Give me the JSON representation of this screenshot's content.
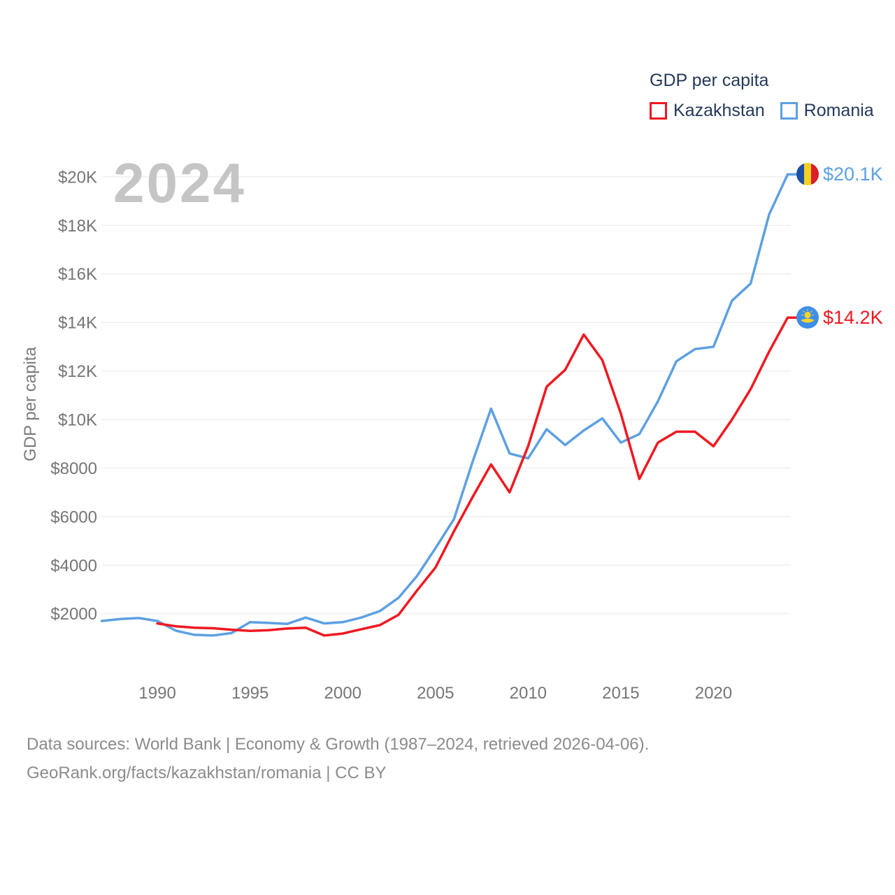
{
  "watermark": "2024",
  "legend": {
    "title": "GDP per capita",
    "items": [
      {
        "label": "Kazakhstan",
        "color": "#f01820"
      },
      {
        "label": "Romania",
        "color": "#5da0e2"
      }
    ]
  },
  "chart_data": {
    "type": "line",
    "title": "GDP per capita",
    "ylabel": "GDP per capita",
    "x_range": [
      1987,
      2024
    ],
    "ylim": [
      0,
      21000
    ],
    "grid": true,
    "legend_position": "top-right",
    "x_ticks": [
      1990,
      1995,
      2000,
      2005,
      2010,
      2015,
      2020
    ],
    "y_ticks": [
      {
        "value": 2000,
        "label": "$2000"
      },
      {
        "value": 4000,
        "label": "$4000"
      },
      {
        "value": 6000,
        "label": "$6000"
      },
      {
        "value": 8000,
        "label": "$8000"
      },
      {
        "value": 10000,
        "label": "$10K"
      },
      {
        "value": 12000,
        "label": "$12K"
      },
      {
        "value": 14000,
        "label": "$14K"
      },
      {
        "value": 16000,
        "label": "$16K"
      },
      {
        "value": 18000,
        "label": "$18K"
      },
      {
        "value": 20000,
        "label": "$20K"
      }
    ],
    "series": [
      {
        "name": "Kazakhstan",
        "flag": "kazakhstan",
        "color": "#f01820",
        "start_year": 1990,
        "end_label": "$14.2K",
        "values": [
          1600,
          1480,
          1420,
          1400,
          1340,
          1290,
          1320,
          1390,
          1420,
          1100,
          1180,
          1360,
          1530,
          1950,
          2950,
          3900,
          5400,
          6800,
          8150,
          7000,
          8900,
          11350,
          12050,
          13500,
          12450,
          10250,
          7550,
          9050,
          9500,
          9500,
          8900,
          10000,
          11250,
          12800,
          14200
        ]
      },
      {
        "name": "Romania",
        "flag": "romania",
        "color": "#5da0e2",
        "start_year": 1987,
        "end_label": "$20.1K",
        "values": [
          1700,
          1780,
          1820,
          1700,
          1300,
          1130,
          1100,
          1200,
          1650,
          1620,
          1580,
          1840,
          1600,
          1650,
          1840,
          2110,
          2650,
          3550,
          4700,
          5900,
          8250,
          10450,
          8600,
          8400,
          9600,
          8950,
          9550,
          10050,
          9050,
          9400,
          10750,
          12400,
          12900,
          13000,
          14900,
          15600,
          18450,
          20100
        ]
      }
    ],
    "colors": {
      "grid": "#ebebeb",
      "tick_text": "#757575",
      "watermark": "#c5c5c5"
    }
  },
  "footer": {
    "line1": "Data sources: World Bank | Economy & Growth (1987–2024, retrieved 2026-04-06).",
    "line2": "GeoRank.org/facts/kazakhstan/romania | CC BY"
  }
}
